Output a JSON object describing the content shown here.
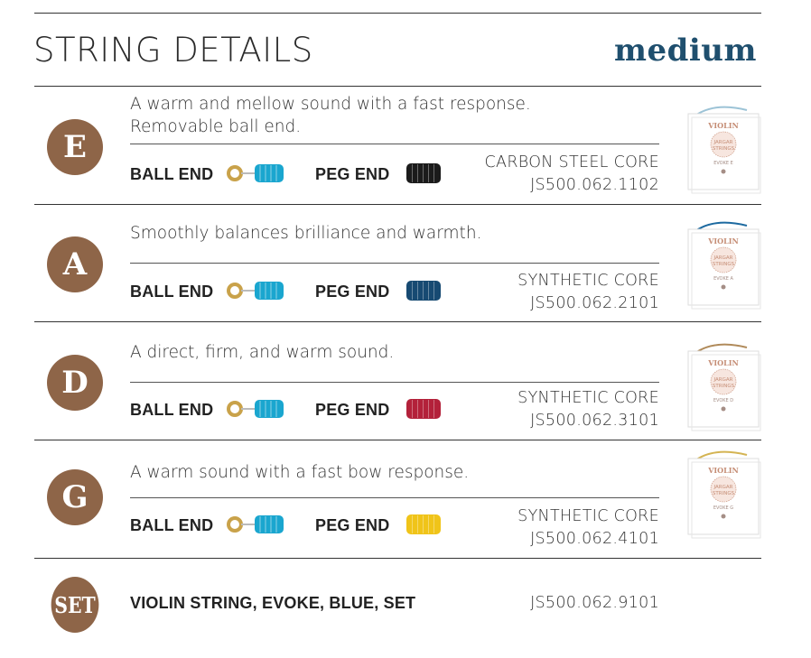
{
  "header": {
    "title": "STRING DETAILS",
    "tension": "medium"
  },
  "strings": [
    {
      "note": "E",
      "description": [
        "A warm and mellow sound with a fast response.",
        "Removable ball end."
      ],
      "ball_label": "BALL END",
      "peg_label": "PEG END",
      "core": "CARBON STEEL CORE",
      "code": "JS500.062.1102",
      "ball_color": "#1aa6cf",
      "peg_color": "#1b1b1b",
      "wire_color": "#9cc3d6"
    },
    {
      "note": "A",
      "description": [
        "Smoothly balances brilliance and warmth."
      ],
      "ball_label": "BALL END",
      "peg_label": "PEG END",
      "core": "SYNTHETIC CORE",
      "code": "JS500.062.2101",
      "ball_color": "#1aa6cf",
      "peg_color": "#174a72",
      "wire_color": "#1d6aa0"
    },
    {
      "note": "D",
      "description": [
        "A direct, firm, and warm sound."
      ],
      "ball_label": "BALL END",
      "peg_label": "PEG END",
      "core": "SYNTHETIC CORE",
      "code": "JS500.062.3101",
      "ball_color": "#1aa6cf",
      "peg_color": "#b3213a",
      "wire_color": "#b08a5a"
    },
    {
      "note": "G",
      "description": [
        "A warm sound with a fast bow response."
      ],
      "ball_label": "BALL END",
      "peg_label": "PEG END",
      "core": "SYNTHETIC CORE",
      "code": "JS500.062.4101",
      "ball_color": "#1aa6cf",
      "peg_color": "#f0c419",
      "wire_color": "#d4b453"
    }
  ],
  "set": {
    "badge": "SET",
    "name": "VIOLIN STRING, EVOKE, BLUE, SET",
    "code": "JS500.062.9101"
  },
  "package": {
    "line1": "VIOLIN",
    "line2": "JARGAR",
    "line3": "STRINGS",
    "line4": "EVOKE"
  },
  "colors": {
    "badge": "#8e6548",
    "tension": "#1f4f6e",
    "ball_eyelet": "#c9a24a",
    "package_text": "#c58d75"
  }
}
